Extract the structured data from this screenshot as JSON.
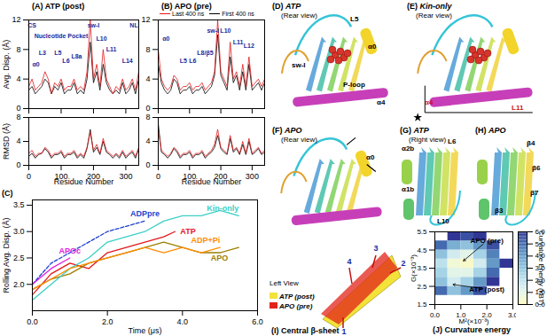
{
  "chart_data": [
    {
      "type": "line",
      "title": "(A) ATP (post)",
      "ylabel": "Avg. Disp. (Å)",
      "tick_labels": "y",
      "x": [
        0,
        10,
        20,
        30,
        40,
        50,
        60,
        70,
        80,
        90,
        100,
        110,
        120,
        130,
        140,
        150,
        160,
        170,
        180,
        190,
        200,
        210,
        220,
        230,
        240,
        250,
        260,
        270,
        280,
        290,
        300,
        310,
        320,
        330,
        340
      ],
      "xlim": [
        0,
        340
      ],
      "xticks": [
        0,
        100,
        200,
        300
      ],
      "ylim": [
        0,
        12
      ],
      "yticks": [
        0,
        4,
        8,
        12
      ],
      "series": [
        {
          "name": "Last 400 ns",
          "color": "#e3171b",
          "values": [
            3,
            4,
            2.5,
            3,
            3.5,
            5,
            4,
            2,
            3.5,
            3,
            4,
            2.5,
            3,
            3,
            4,
            2.5,
            3,
            2.5,
            5,
            12,
            4,
            6,
            3,
            8,
            4,
            3,
            2,
            3,
            2.5,
            4,
            2.5,
            3,
            4,
            2.5,
            5
          ]
        },
        {
          "name": "First 400 ns",
          "color": "#000000",
          "values": [
            2.5,
            3,
            2,
            2.5,
            3,
            4,
            3.5,
            2,
            3,
            2.5,
            3.5,
            2,
            2.5,
            2.5,
            3.5,
            2,
            2.5,
            2,
            4,
            9,
            3.5,
            5,
            2.5,
            6,
            3.5,
            2.5,
            2,
            2.5,
            2,
            3.5,
            2,
            2.5,
            3.5,
            2,
            4
          ]
        }
      ],
      "annotations": [
        {
          "text": "CS",
          "x": 10,
          "y": 11.2
        },
        {
          "text": "NL",
          "x": 325,
          "y": 11.2
        },
        {
          "text": "Nucleotide Pocket",
          "x": 100,
          "y": 9.8
        },
        {
          "text": "α0",
          "x": 22,
          "y": 6
        },
        {
          "text": "L3",
          "x": 42,
          "y": 7.5
        },
        {
          "text": "L5",
          "x": 90,
          "y": 7.5
        },
        {
          "text": "L6",
          "x": 115,
          "y": 6.5
        },
        {
          "text": "L8a",
          "x": 148,
          "y": 7
        },
        {
          "text": "sw-I",
          "x": 200,
          "y": 11.2
        },
        {
          "text": "L10",
          "x": 225,
          "y": 9.5
        },
        {
          "text": "L11",
          "x": 255,
          "y": 8
        },
        {
          "text": "L14",
          "x": 305,
          "y": 6.5
        }
      ]
    },
    {
      "type": "line",
      "ylabel": "RMSD (Å)",
      "xlabel": "Residue Number",
      "x": [
        0,
        10,
        20,
        30,
        40,
        50,
        60,
        70,
        80,
        90,
        100,
        110,
        120,
        130,
        140,
        150,
        160,
        170,
        180,
        190,
        200,
        210,
        220,
        230,
        240,
        250,
        260,
        270,
        280,
        290,
        300,
        310,
        320,
        330,
        340
      ],
      "xlim": [
        0,
        340
      ],
      "xticks": [
        0,
        100,
        200,
        300
      ],
      "ylim": [
        0,
        8
      ],
      "yticks": [
        0,
        4,
        8
      ],
      "series": [
        {
          "name": "Last 400 ns",
          "color": "#e3171b",
          "values": [
            2,
            2.5,
            1.5,
            2,
            2,
            3,
            2.5,
            1.5,
            2,
            2,
            2.5,
            1.5,
            2,
            2,
            2.5,
            1.5,
            2,
            1.5,
            3,
            5.5,
            2.5,
            3.5,
            2,
            4.5,
            2.5,
            2,
            1.5,
            2,
            1.5,
            2.5,
            1.5,
            2,
            2.5,
            1.5,
            3
          ]
        },
        {
          "name": "First 400 ns",
          "color": "#000000",
          "values": [
            1.5,
            2,
            1.2,
            1.8,
            2,
            2.8,
            2.2,
            1.2,
            1.8,
            1.8,
            2.2,
            1.2,
            1.8,
            1.8,
            2.2,
            1.2,
            1.8,
            1.2,
            2.8,
            6,
            2.2,
            3,
            1.8,
            4,
            2.2,
            1.8,
            1.2,
            1.8,
            1.2,
            2.2,
            1.2,
            1.8,
            2.2,
            1.2,
            2.8
          ]
        }
      ]
    },
    {
      "type": "line",
      "title": "(B) APO (pre)",
      "tick_labels": "y",
      "legend": "top",
      "x": [
        0,
        10,
        20,
        30,
        40,
        50,
        60,
        70,
        80,
        90,
        100,
        110,
        120,
        130,
        140,
        150,
        160,
        170,
        180,
        190,
        200,
        210,
        220,
        230,
        240,
        250,
        260,
        270,
        280,
        290,
        300,
        310,
        320,
        330,
        340
      ],
      "xlim": [
        0,
        340
      ],
      "xticks": [
        0,
        100,
        200,
        300
      ],
      "ylim": [
        0,
        12
      ],
      "yticks": [
        0,
        4,
        8,
        12
      ],
      "series": [
        {
          "name": "Last 400 ns",
          "color": "#e3171b",
          "values": [
            8,
            4,
            3,
            2.5,
            3,
            4.5,
            4,
            2.5,
            3,
            3,
            3.5,
            2.5,
            3,
            3,
            3.5,
            2.5,
            3,
            3.5,
            5,
            12,
            5,
            4,
            3,
            9,
            4,
            5,
            3,
            6,
            3,
            7,
            3,
            3.5,
            4,
            3,
            4
          ]
        },
        {
          "name": "First 400 ns",
          "color": "#000000",
          "values": [
            6,
            3.5,
            2.5,
            2,
            2.5,
            4,
            3.5,
            2,
            2.5,
            2.5,
            3,
            2,
            2.5,
            2.5,
            3,
            2,
            2.5,
            3,
            4.5,
            10,
            4.5,
            3.5,
            2.5,
            7,
            3.5,
            4.5,
            2.5,
            5,
            2.5,
            6,
            2.5,
            3,
            3.5,
            2.5,
            3.5
          ]
        }
      ],
      "annotations": [
        {
          "text": "α0",
          "x": 25,
          "y": 9.5
        },
        {
          "text": "L5",
          "x": 80,
          "y": 6.5
        },
        {
          "text": "L6",
          "x": 110,
          "y": 6.5
        },
        {
          "text": "L8/β5",
          "x": 150,
          "y": 7.5
        },
        {
          "text": "sw-I",
          "x": 175,
          "y": 10.5
        },
        {
          "text": "L10",
          "x": 215,
          "y": 10.5
        },
        {
          "text": "L11",
          "x": 255,
          "y": 9
        },
        {
          "text": "L12",
          "x": 290,
          "y": 8.5
        }
      ]
    },
    {
      "type": "line",
      "xlabel": "Residue Number",
      "x": [
        0,
        10,
        20,
        30,
        40,
        50,
        60,
        70,
        80,
        90,
        100,
        110,
        120,
        130,
        140,
        150,
        160,
        170,
        180,
        190,
        200,
        210,
        220,
        230,
        240,
        250,
        260,
        270,
        280,
        290,
        300,
        310,
        320,
        330,
        340
      ],
      "xlim": [
        0,
        340
      ],
      "xticks": [
        0,
        100,
        200,
        300
      ],
      "ylim": [
        0,
        8
      ],
      "yticks": [
        0,
        4,
        8
      ],
      "series": [
        {
          "name": "Last 400 ns",
          "color": "#e3171b",
          "values": [
            6,
            2.5,
            2,
            1.5,
            2,
            3,
            2.5,
            1.5,
            2,
            2,
            2.5,
            1.5,
            2,
            2,
            2.5,
            1.5,
            2,
            2.5,
            3.5,
            6,
            3,
            2.5,
            2,
            5,
            2.5,
            3,
            2,
            4,
            2,
            4.5,
            2,
            2.5,
            3,
            2,
            2.5
          ]
        },
        {
          "name": "First 400 ns",
          "color": "#000000",
          "values": [
            7,
            2.2,
            1.8,
            1.2,
            1.8,
            2.8,
            2.2,
            1.2,
            1.8,
            1.8,
            2.2,
            1.2,
            1.8,
            1.8,
            2.2,
            1.2,
            1.8,
            2.2,
            3,
            5,
            2.8,
            2.2,
            1.8,
            4.5,
            2.2,
            2.8,
            1.8,
            3.5,
            1.8,
            4,
            1.8,
            2.2,
            2.8,
            1.8,
            2.2
          ]
        }
      ]
    },
    {
      "type": "line",
      "title": "(C)",
      "xlabel": "Time (μs)",
      "ylabel": "Rolling Avg. Disp. (Å)",
      "xlim": [
        0,
        6
      ],
      "xticks": [
        0,
        2,
        4,
        6
      ],
      "ylim": [
        1.5,
        3.6
      ],
      "yticks": [
        2,
        2.5,
        3,
        3.5
      ],
      "series": [
        {
          "name": "ATP",
          "color": "#e3171b",
          "x": [
            0,
            0.5,
            1,
            1.5,
            2,
            2.5,
            3,
            3.5,
            3.8
          ],
          "values": [
            1.8,
            2.2,
            2.4,
            2.3,
            2.6,
            2.7,
            2.8,
            2.9,
            3.0
          ]
        },
        {
          "name": "APO",
          "color": "#9c7e00",
          "x": [
            0,
            0.5,
            1,
            1.5,
            2,
            2.5,
            3,
            3.5,
            4,
            4.5,
            5,
            5.5
          ],
          "values": [
            1.9,
            2.1,
            2.2,
            2.4,
            2.5,
            2.6,
            2.7,
            2.8,
            2.7,
            2.6,
            2.6,
            2.7
          ]
        },
        {
          "name": "ADPpre",
          "color": "#1f3fcf",
          "line_style": "dashed",
          "x": [
            0,
            0.5,
            1,
            1.5,
            2,
            2.5,
            3
          ],
          "values": [
            2.0,
            2.4,
            2.6,
            2.8,
            3.0,
            3.1,
            3.2
          ]
        },
        {
          "name": "Kin-only",
          "color": "#3ccfc6",
          "x": [
            0,
            0.5,
            1,
            1.5,
            2,
            2.5,
            3,
            3.5,
            4,
            4.5,
            5,
            5.5
          ],
          "values": [
            1.7,
            2.0,
            2.3,
            2.5,
            2.8,
            2.9,
            3.0,
            3.2,
            3.3,
            3.3,
            3.4,
            3.3
          ]
        },
        {
          "name": "ADP+Pi",
          "color": "#ff8c00",
          "x": [
            0,
            0.5,
            1,
            1.5,
            2,
            2.5,
            3,
            3.5,
            4,
            4.5,
            5
          ],
          "values": [
            1.9,
            2.1,
            2.3,
            2.4,
            2.5,
            2.6,
            2.7,
            2.6,
            2.7,
            2.6,
            2.7
          ]
        },
        {
          "name": "APOc",
          "color": "#e020e0",
          "x": [
            0,
            0.5,
            1
          ],
          "values": [
            2.0,
            2.3,
            2.5
          ]
        }
      ]
    },
    {
      "type": "heatmap",
      "title": "(J) Curvature energy",
      "xlabel": "M²(×10⁻³)",
      "ylabel": "G(×10⁻³)",
      "xlim": [
        0,
        3
      ],
      "xticks": [
        0,
        1,
        2,
        3
      ],
      "ylim": [
        1.5,
        5.5
      ],
      "yticks": [
        1.5,
        2.5,
        3.5,
        4.5,
        5.5
      ],
      "x_bins": [
        0,
        0.5,
        1,
        1.5,
        2,
        2.5,
        3
      ],
      "y_bins": [
        1.5,
        2,
        2.5,
        3,
        3.5,
        4,
        4.5,
        5,
        5.5
      ],
      "cells": [
        [
          null,
          null,
          null,
          null,
          null,
          null
        ],
        [
          5,
          3,
          4,
          5.5,
          null,
          null
        ],
        [
          3,
          1.5,
          2.5,
          4,
          6,
          null
        ],
        [
          2.5,
          1,
          1,
          2.5,
          5,
          null
        ],
        [
          2,
          0.5,
          0.2,
          1.5,
          4,
          6
        ],
        [
          3,
          1.5,
          1,
          2.5,
          4.5,
          null
        ],
        [
          5,
          3.5,
          3,
          4,
          5.5,
          null
        ],
        [
          null,
          6,
          5.5,
          6,
          null,
          null
        ]
      ],
      "colorbar": {
        "label": "Curvature Energy (kBT)",
        "range": [
          0,
          6
        ],
        "ticks": [
          0,
          1,
          2,
          3,
          4,
          5,
          6
        ]
      },
      "annotations": [
        {
          "text": "APO (pre)",
          "x": 2.0,
          "y": 5.0,
          "x2": 1.1,
          "y2": 3.9
        },
        {
          "text": "ATP (post)",
          "x": 2.0,
          "y": 2.35,
          "x2": 0.7,
          "y2": 2.6
        }
      ]
    }
  ],
  "structure_panels": [
    {
      "label": "(D)",
      "name": "ATP",
      "view": "(Rear view)",
      "labels": [
        "L5",
        "α0",
        "sw-I",
        "P-loop",
        "α4"
      ]
    },
    {
      "label": "(E)",
      "name": "Kin-only",
      "view": "(Rear view)",
      "labels": [
        "α4",
        "L11"
      ]
    },
    {
      "label": "(F)",
      "name": "APO",
      "view": "(Rear view)",
      "labels": [
        "α0"
      ]
    },
    {
      "label": "(G)",
      "name": "ATP",
      "view": "(Right view)",
      "labels": [
        "α2b",
        "L6",
        "α1b",
        "L10"
      ]
    },
    {
      "label": "(H)",
      "name": "APO",
      "labels": [
        "β4",
        "β6",
        "β7",
        "β3"
      ]
    }
  ],
  "sheet_panel": {
    "title": "(I) Central β-sheet",
    "view": "Left View",
    "states": [
      "ATP (post)",
      "APO (pre)"
    ],
    "strands": [
      "1",
      "2",
      "3",
      "4"
    ]
  }
}
